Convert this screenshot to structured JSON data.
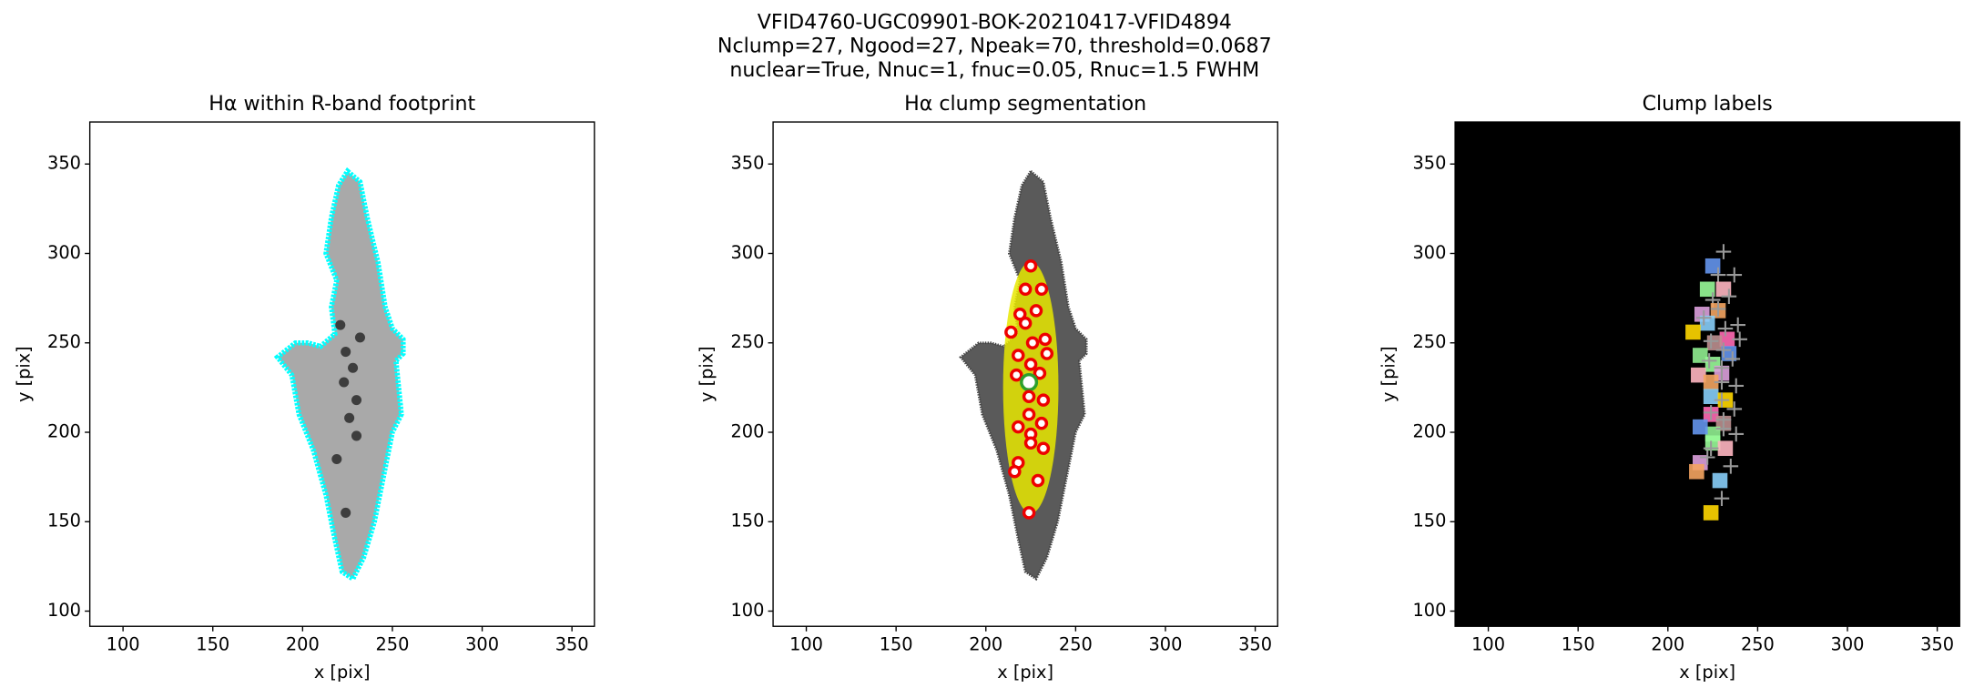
{
  "title": [
    "VFID4760-UGC09901-BOK-20210417-VFID4894",
    "Nclump=27, Ngood=27, Npeak=70, threshold=0.0687",
    "nuclear=True, Nnuc=1, fnuc=0.05, Rnuc=1.5 FWHM"
  ],
  "chart_data": [
    {
      "type": "image",
      "title": "Hα within R-band footprint",
      "xlabel": "x [pix]",
      "ylabel": "y [pix]",
      "xlim": [
        81.5,
        362.5
      ],
      "ylim": [
        91.5,
        373.5
      ],
      "xticks": [
        100,
        150,
        200,
        250,
        300,
        350
      ],
      "yticks": [
        100,
        150,
        200,
        250,
        300,
        350
      ]
    },
    {
      "type": "image",
      "title": "Hα clump segmentation",
      "xlabel": "x [pix]",
      "ylabel": "y [pix]",
      "xlim": [
        81.5,
        362.5
      ],
      "ylim": [
        91.5,
        373.5
      ],
      "xticks": [
        100,
        150,
        200,
        250,
        300,
        350
      ],
      "yticks": [
        100,
        150,
        200,
        250,
        300,
        350
      ]
    },
    {
      "type": "image",
      "title": "Clump labels",
      "xlabel": "x [pix]",
      "ylabel": "y [pix]",
      "xlim": [
        81.5,
        362.5
      ],
      "ylim": [
        91.5,
        373.5
      ],
      "xticks": [
        100,
        150,
        200,
        250,
        300,
        350
      ],
      "yticks": [
        100,
        150,
        200,
        250,
        300,
        350
      ]
    }
  ]
}
